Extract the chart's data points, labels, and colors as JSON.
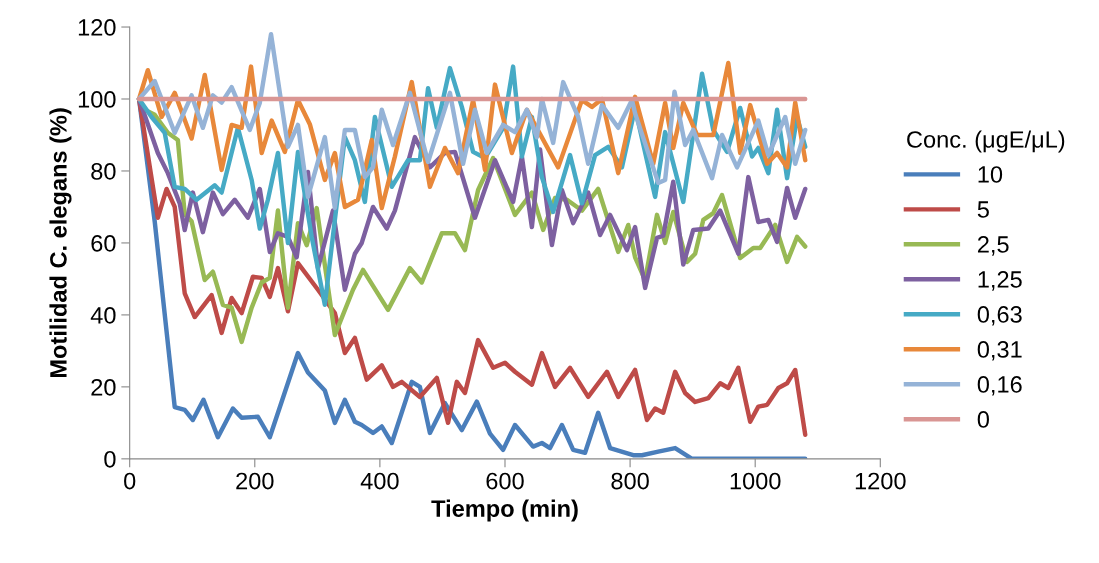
{
  "chart_data": {
    "type": "line",
    "xlabel": "Tiempo (min)",
    "ylabel": "Motilidad C. elegans (%)",
    "legend_title": "Conc. (μgE/μL)",
    "legend": "right",
    "grid": false,
    "marker": "none",
    "line_style": "solid",
    "xlim": [
      0,
      1200
    ],
    "xticks": [
      0,
      200,
      400,
      600,
      800,
      1000,
      1200
    ],
    "ylim": [
      0,
      120
    ],
    "yticks": [
      0,
      20,
      40,
      60,
      80,
      100,
      120
    ],
    "series": [
      {
        "name": "10",
        "color": "#4a7ebb",
        "x": [
          15,
          40,
          72,
          88,
          101,
          118,
          141,
          165,
          179,
          205,
          224,
          269,
          285,
          312,
          328,
          344,
          360,
          371,
          389,
          403,
          419,
          451,
          464,
          480,
          504,
          531,
          555,
          576,
          597,
          616,
          645,
          659,
          672,
          691,
          709,
          728,
          749,
          768,
          805,
          819,
          845,
          872,
          899,
          1080
        ],
        "values": [
          100,
          66,
          14.4,
          13.6,
          10.8,
          16.4,
          6,
          14,
          11.4,
          11.7,
          6,
          29.4,
          24,
          19,
          10,
          16.4,
          10.3,
          9.4,
          7.2,
          9,
          4.4,
          21.4,
          20,
          7.2,
          15.5,
          8,
          15.9,
          7,
          2.5,
          9.4,
          3.4,
          4.4,
          3,
          9.4,
          2.5,
          1.7,
          12.8,
          3,
          1,
          1,
          2,
          3,
          0,
          0
        ]
      },
      {
        "name": "5",
        "color": "#be4b48",
        "x": [
          15,
          45,
          59,
          72,
          88,
          104,
          131,
          147,
          163,
          179,
          197,
          211,
          224,
          237,
          253,
          269,
          301,
          328,
          344,
          360,
          379,
          403,
          421,
          435,
          464,
          491,
          509,
          523,
          536,
          557,
          581,
          600,
          616,
          643,
          659,
          680,
          704,
          733,
          763,
          781,
          808,
          827,
          840,
          853,
          872,
          888,
          904,
          925,
          944,
          957,
          973,
          992,
          1005,
          1019,
          1037,
          1051,
          1064,
          1080
        ],
        "values": [
          100,
          67,
          75,
          70,
          46,
          39.4,
          45.5,
          35,
          44.7,
          40.5,
          50.6,
          50.3,
          45,
          53,
          41,
          54.4,
          47,
          40.5,
          29.4,
          33.6,
          22,
          26,
          20,
          21.4,
          17.2,
          22.5,
          10,
          21.4,
          18.3,
          33,
          25.3,
          26.7,
          24.2,
          20.6,
          29.4,
          20,
          25.3,
          17.2,
          24.2,
          17.2,
          24.7,
          10.8,
          14,
          12.8,
          24.2,
          18.3,
          15.8,
          16.9,
          21,
          19.7,
          25.3,
          10.3,
          14.5,
          15,
          19.7,
          21,
          24.7,
          6.7
        ]
      },
      {
        "name": "2,5",
        "color": "#98b954",
        "x": [
          15,
          24,
          40,
          61,
          77,
          88,
          99,
          120,
          133,
          149,
          163,
          179,
          195,
          211,
          224,
          237,
          253,
          269,
          283,
          299,
          328,
          357,
          373,
          413,
          448,
          467,
          499,
          520,
          536,
          557,
          581,
          616,
          643,
          661,
          680,
          699,
          723,
          749,
          781,
          797,
          808,
          824,
          843,
          856,
          869,
          891,
          904,
          917,
          933,
          947,
          976,
          997,
          1008,
          1032,
          1051,
          1067,
          1080
        ],
        "values": [
          100,
          97,
          95.6,
          90.6,
          88.6,
          68,
          66,
          49.7,
          52,
          42.8,
          42,
          32.5,
          42,
          49,
          50.3,
          69,
          42,
          65.5,
          59.4,
          69.7,
          34.4,
          47,
          52.5,
          41.4,
          53,
          49,
          62.7,
          62.7,
          58,
          74.7,
          83.6,
          67.8,
          74,
          63.6,
          72.5,
          72,
          69,
          75,
          57.5,
          65,
          56,
          49.7,
          67.8,
          60,
          68.6,
          54.7,
          57,
          66.4,
          68.3,
          73.3,
          55.8,
          58.6,
          58.6,
          65,
          54.7,
          61.7,
          59
        ]
      },
      {
        "name": "1,25",
        "color": "#7d60a0",
        "x": [
          15,
          45,
          61,
          80,
          88,
          101,
          117,
          133,
          149,
          168,
          189,
          208,
          224,
          237,
          253,
          267,
          285,
          301,
          325,
          344,
          360,
          371,
          389,
          411,
          424,
          456,
          480,
          504,
          520,
          552,
          584,
          613,
          627,
          643,
          656,
          675,
          691,
          709,
          733,
          752,
          768,
          795,
          808,
          824,
          843,
          853,
          869,
          885,
          901,
          925,
          944,
          973,
          989,
          1005,
          1021,
          1035,
          1051,
          1064,
          1080
        ],
        "values": [
          100,
          85,
          79.4,
          71,
          63.6,
          74,
          63,
          74,
          68,
          72,
          67,
          75,
          57.5,
          62.7,
          61.7,
          56,
          79.7,
          53,
          69,
          47,
          57,
          60,
          70,
          64,
          69,
          89.4,
          81,
          85,
          85.3,
          67,
          83,
          71.4,
          84,
          64.4,
          86,
          59.4,
          74.7,
          65.5,
          74,
          62.2,
          67.8,
          58,
          64.4,
          47.5,
          61.4,
          62,
          77,
          54,
          63.6,
          64,
          69,
          57,
          78.3,
          65.8,
          66.4,
          60.3,
          75.3,
          67,
          75
        ]
      },
      {
        "name": "0,63",
        "color": "#46aac5",
        "x": [
          15,
          35,
          56,
          72,
          88,
          107,
          136,
          147,
          173,
          195,
          208,
          221,
          237,
          253,
          269,
          291,
          312,
          328,
          344,
          360,
          376,
          392,
          419,
          445,
          464,
          477,
          491,
          512,
          531,
          549,
          568,
          597,
          613,
          627,
          643,
          659,
          677,
          704,
          723,
          744,
          765,
          787,
          808,
          840,
          856,
          885,
          915,
          933,
          955,
          976,
          995,
          1005,
          1021,
          1035,
          1051,
          1067,
          1080
        ],
        "values": [
          100,
          95,
          90.6,
          75.6,
          75,
          72,
          76,
          74,
          92,
          77.5,
          64,
          72,
          85,
          60,
          85.3,
          61.7,
          42.8,
          66.4,
          89.4,
          83,
          71.4,
          95,
          75.6,
          83,
          83,
          103,
          92,
          108.6,
          97.8,
          85.3,
          83.6,
          92,
          109,
          84,
          95,
          78.3,
          68.6,
          84.4,
          71,
          84.4,
          86.7,
          81,
          97.5,
          72.8,
          90.8,
          71.4,
          107,
          91.4,
          85.3,
          97.5,
          84,
          86.4,
          79.4,
          97,
          78,
          95,
          86.7
        ]
      },
      {
        "name": "0,31",
        "color": "#e8883a",
        "x": [
          15,
          29,
          51,
          72,
          99,
          120,
          147,
          163,
          179,
          194,
          211,
          227,
          248,
          269,
          288,
          312,
          328,
          344,
          365,
          387,
          403,
          424,
          451,
          480,
          504,
          525,
          549,
          568,
          584,
          611,
          635,
          685,
          723,
          739,
          755,
          781,
          808,
          837,
          856,
          869,
          885,
          907,
          933,
          957,
          976,
          992,
          1019,
          1035,
          1051,
          1064,
          1080
        ],
        "values": [
          100,
          108,
          95,
          101.7,
          89,
          106.7,
          80.3,
          92.8,
          92,
          109,
          85,
          94,
          85.3,
          99.7,
          93,
          77.5,
          85,
          70,
          72,
          88.6,
          69.7,
          84,
          104.7,
          75.6,
          86.4,
          79.4,
          99.7,
          80.3,
          104,
          85,
          97,
          81,
          99.7,
          97.8,
          100,
          79.4,
          100.6,
          82,
          98.9,
          86.4,
          98.9,
          90,
          90,
          110,
          85,
          98.3,
          82,
          85,
          81,
          99,
          83
        ]
      },
      {
        "name": "0,16",
        "color": "#95b3d7",
        "x": [
          15,
          40,
          72,
          99,
          117,
          133,
          147,
          163,
          192,
          208,
          226,
          253,
          269,
          285,
          312,
          328,
          344,
          360,
          376,
          389,
          403,
          421,
          448,
          477,
          512,
          533,
          552,
          571,
          597,
          616,
          635,
          651,
          659,
          677,
          693,
          717,
          733,
          755,
          781,
          803,
          808,
          845,
          856,
          871,
          888,
          901,
          931,
          947,
          971,
          1005,
          1021,
          1048,
          1064,
          1080
        ],
        "values": [
          100,
          105,
          90.6,
          101,
          92,
          101,
          99,
          103.3,
          91.4,
          98.9,
          118,
          86.7,
          92.8,
          72.8,
          89.4,
          69.7,
          91.4,
          91.4,
          78.3,
          81,
          97,
          87.2,
          101.7,
          82.5,
          101.7,
          82,
          97,
          85,
          92.8,
          90.8,
          97,
          89.4,
          100,
          87.8,
          104.7,
          95,
          82,
          98.3,
          92,
          99.7,
          96,
          76.7,
          77.5,
          102,
          87.2,
          91.4,
          78,
          90,
          81,
          94,
          84.4,
          95,
          82,
          91.4
        ]
      },
      {
        "name": "0",
        "color": "#d99694",
        "x": [
          15,
          1080
        ],
        "values": [
          100,
          100
        ]
      }
    ]
  }
}
